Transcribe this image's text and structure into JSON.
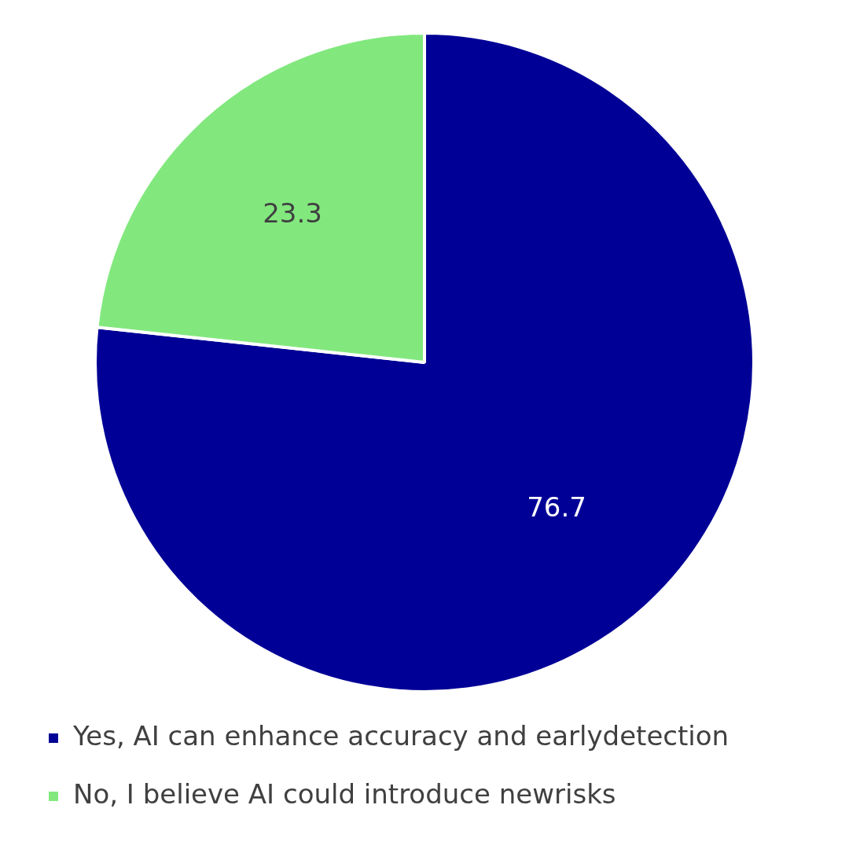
{
  "chart_data": {
    "type": "pie",
    "categories": [
      "Yes, AI can enhance accuracy and earlydetection",
      "No, I believe AI could introduce newrisks"
    ],
    "values": [
      76.7,
      23.3
    ],
    "colors": [
      "#000096",
      "#82e87e"
    ],
    "data_labels": true,
    "legend": "bottom"
  }
}
